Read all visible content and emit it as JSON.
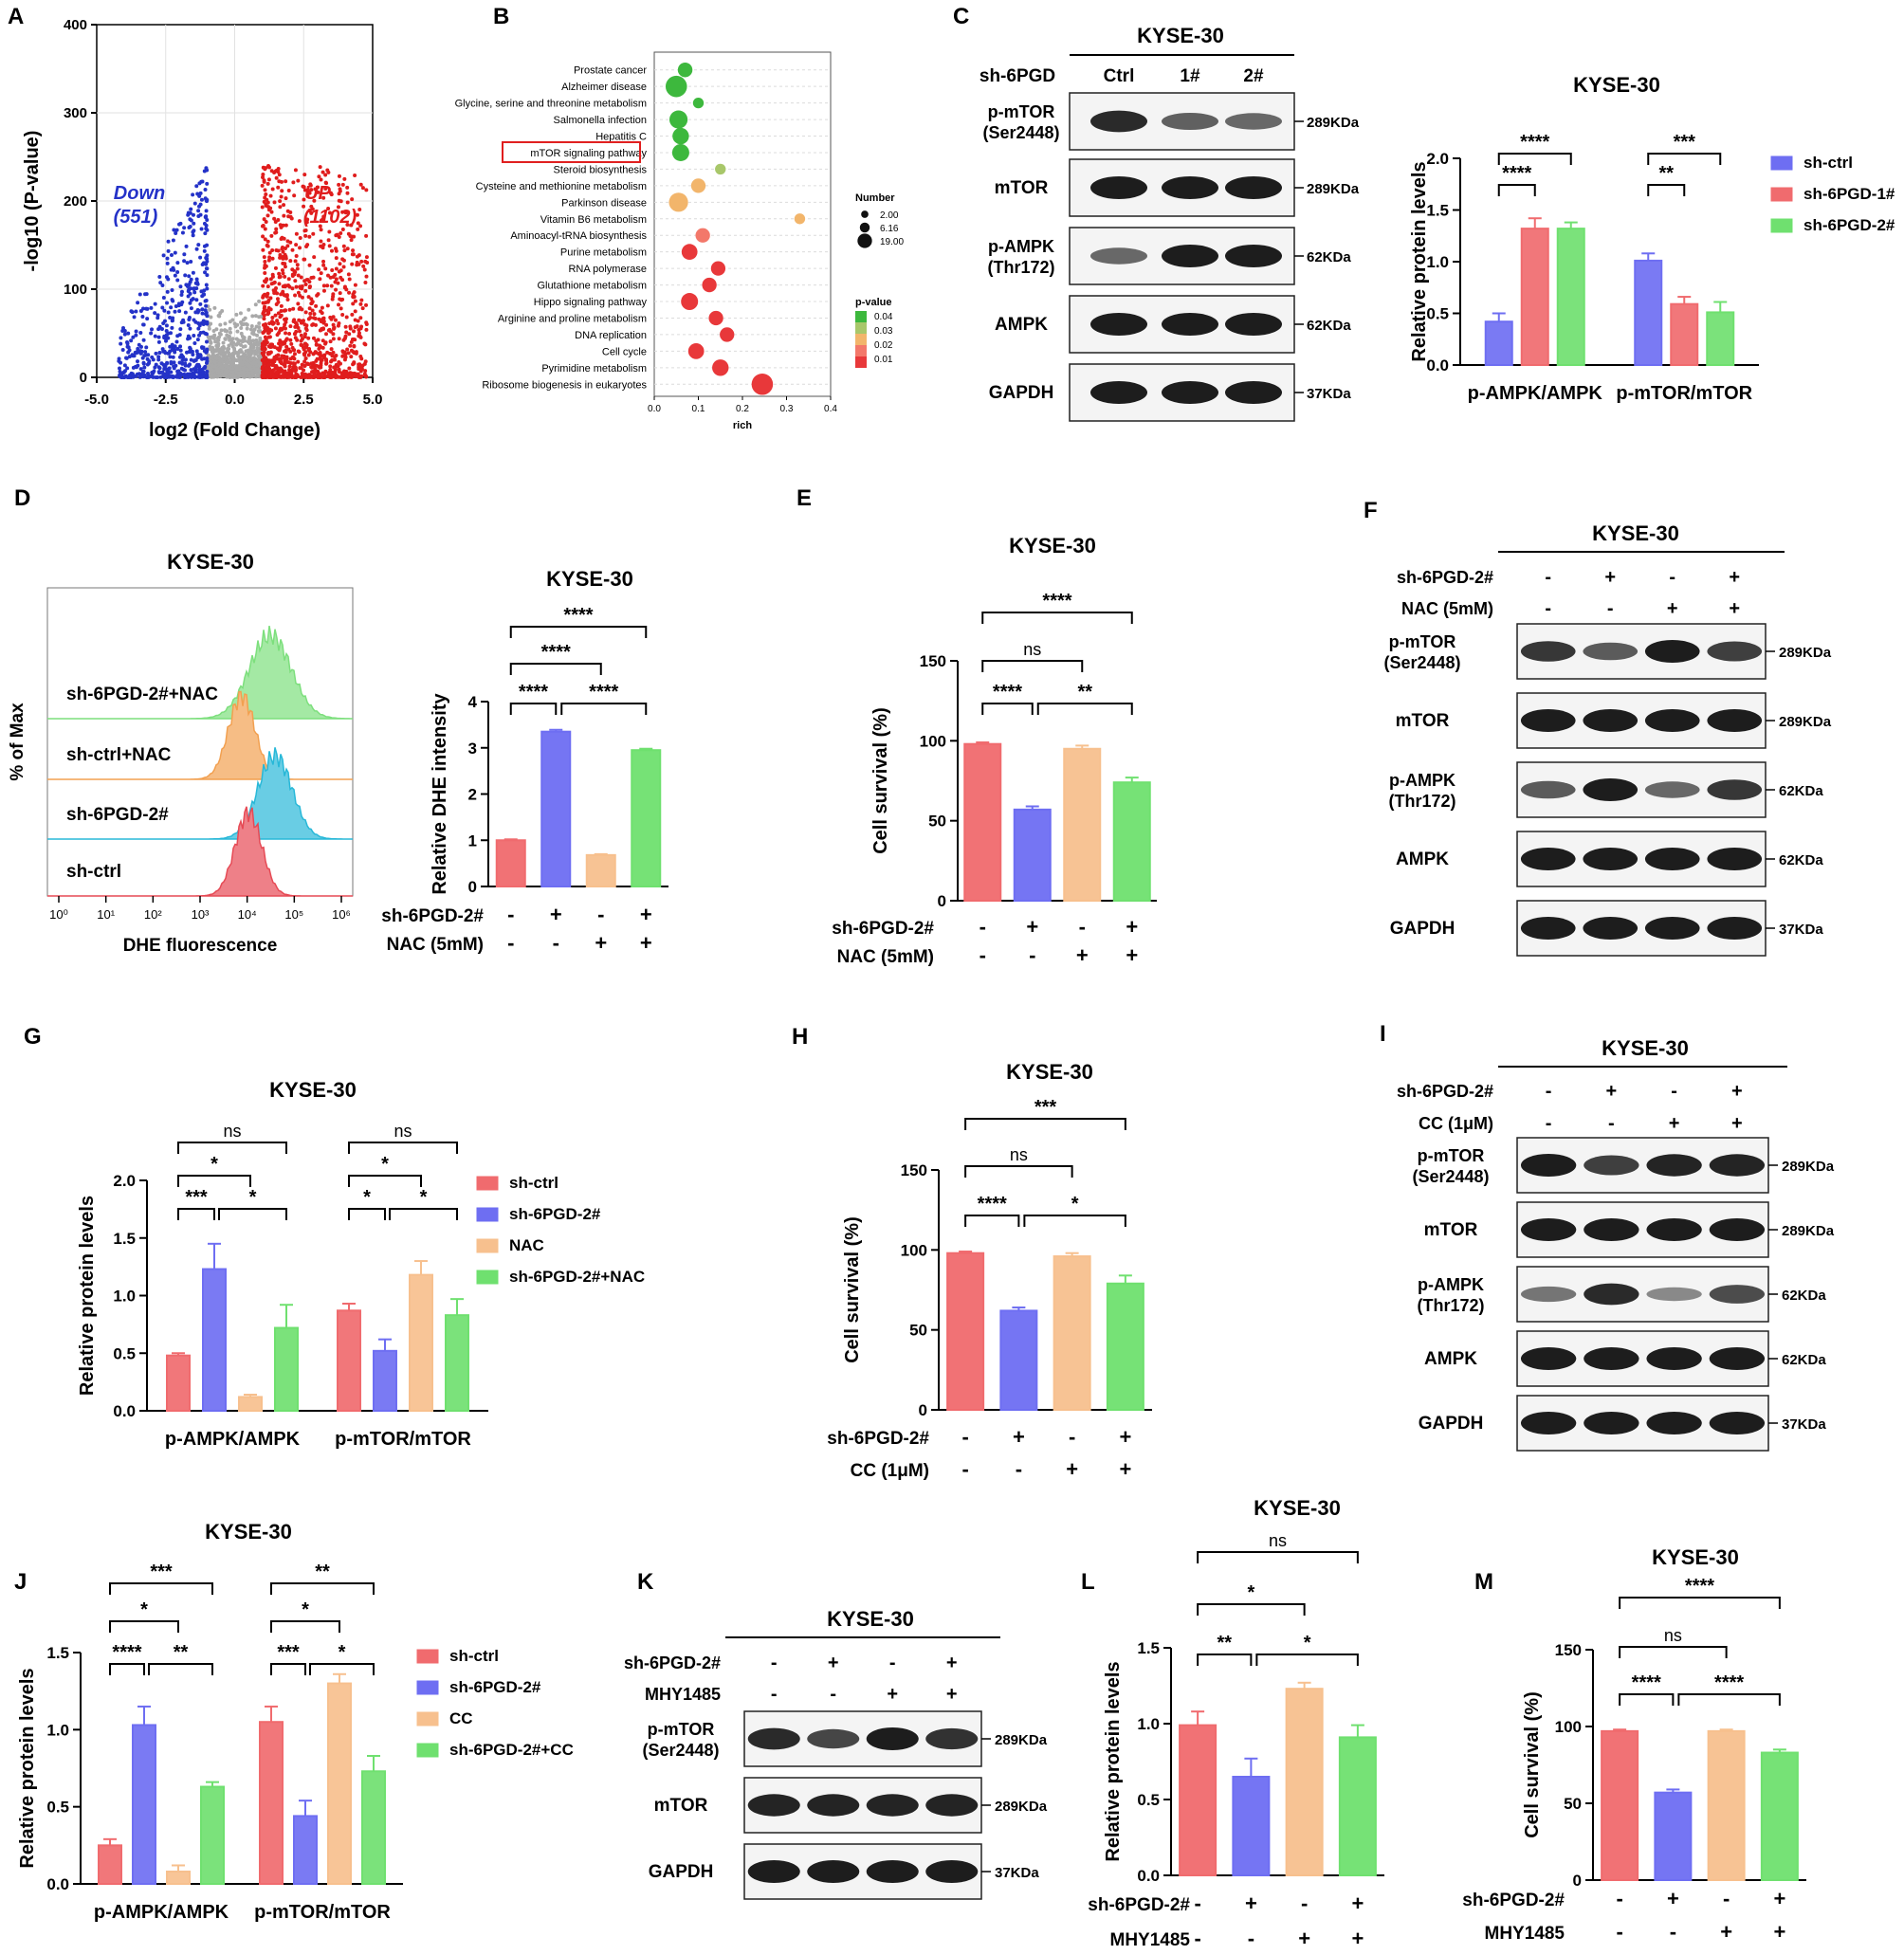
{
  "colors": {
    "ctrl": "#f06b6e",
    "sh": "#6e6ef2",
    "nac": "#f7c08e",
    "combo": "#6fe06f",
    "gray": "#a9a9a9",
    "up": "#e01d1d",
    "down": "#2432c8"
  },
  "panels": {
    "A": "A",
    "B": "B",
    "C": "C",
    "D": "D",
    "E": "E",
    "F": "F",
    "G": "G",
    "H": "H",
    "I": "I",
    "J": "J",
    "K": "K",
    "L": "L",
    "M": "M"
  },
  "cell_line": "KYSE-30",
  "chart_data": [
    {
      "id": "A",
      "type": "scatter",
      "xlabel": "log2 (Fold Change)",
      "ylabel": "-log10 (P-value)",
      "xlim": [
        -5,
        5
      ],
      "ylim": [
        0,
        400
      ],
      "xticks": [
        "-5.0",
        "-2.5",
        "0.0",
        "2.5",
        "5.0"
      ],
      "yticks": [
        "0",
        "100",
        "200",
        "300",
        "400"
      ],
      "annotations": [
        {
          "text": "Down",
          "color": "down"
        },
        {
          "text": "(551)",
          "color": "down"
        },
        {
          "text": "UP",
          "color": "up"
        },
        {
          "text": "(1102)",
          "color": "up"
        }
      ],
      "series": [
        {
          "name": "Down",
          "count": 551
        },
        {
          "name": "UP",
          "count": 1102
        }
      ],
      "grid": true
    },
    {
      "id": "B",
      "type": "scatter",
      "xlabel": "rich",
      "xlim": [
        0,
        0.4
      ],
      "xticks": [
        "0.0",
        "0.1",
        "0.2",
        "0.3",
        "0.4"
      ],
      "categories": [
        "Prostate cancer",
        "Alzheimer disease",
        "Glycine, serine and threonine metabolism",
        "Salmonella infection",
        "Hepatitis C",
        "mTOR signaling pathway",
        "Steroid biosynthesis",
        "Cysteine and methionine metabolism",
        "Parkinson disease",
        "Vitamin B6 metabolism",
        "Aminoacyl-tRNA biosynthesis",
        "Purine metabolism",
        "RNA polymerase",
        "Glutathione metabolism",
        "Hippo signaling pathway",
        "Arginine and proline metabolism",
        "DNA replication",
        "Cell cycle",
        "Pyrimidine metabolism",
        "Ribosome biogenesis in eukaryotes"
      ],
      "rich": [
        0.07,
        0.05,
        0.1,
        0.055,
        0.06,
        0.06,
        0.15,
        0.1,
        0.055,
        0.33,
        0.11,
        0.08,
        0.145,
        0.125,
        0.08,
        0.14,
        0.165,
        0.095,
        0.15,
        0.245
      ],
      "number": [
        6.16,
        19,
        2,
        12,
        9,
        10,
        2,
        6,
        14,
        2,
        6,
        8,
        6,
        6,
        10,
        6,
        6,
        8,
        9,
        19
      ],
      "pvalue": [
        0.04,
        0.04,
        0.04,
        0.04,
        0.04,
        0.04,
        0.03,
        0.02,
        0.02,
        0.02,
        0.015,
        0.01,
        0.01,
        0.01,
        0.01,
        0.01,
        0.01,
        0.01,
        0.01,
        0.01
      ],
      "highlight": "mTOR signaling pathway",
      "legend": {
        "size_title": "Number",
        "sizes": [
          "2.00",
          "6.16",
          "19.00"
        ],
        "color_title": "p-value",
        "colors": [
          "0.04",
          "0.03",
          "0.02",
          "0.01"
        ]
      },
      "grid": true
    },
    {
      "id": "C-quant",
      "type": "bar",
      "title": "KYSE-30",
      "ylabel": "Relative protein levels",
      "ylim": [
        0,
        2
      ],
      "yticks": [
        "0.0",
        "0.5",
        "1.0",
        "1.5",
        "2.0"
      ],
      "categories": [
        "p-AMPK/AMPK",
        "p-mTOR/mTOR"
      ],
      "series": [
        {
          "name": "sh-ctrl",
          "color": "sh",
          "values": [
            0.42,
            1.01
          ],
          "err": [
            0.08,
            0.07
          ]
        },
        {
          "name": "sh-6PGD-1#",
          "color": "ctrl",
          "values": [
            1.32,
            0.59
          ],
          "err": [
            0.1,
            0.07
          ]
        },
        {
          "name": "sh-6PGD-2#",
          "color": "combo",
          "values": [
            1.32,
            0.51
          ],
          "err": [
            0.06,
            0.1
          ]
        }
      ],
      "legend": "top-right"
    },
    {
      "id": "D-quant",
      "type": "bar",
      "title": "KYSE-30",
      "ylabel": "Relative DHE intensity",
      "ylim": [
        0,
        4
      ],
      "yticks": [
        "0",
        "1",
        "2",
        "3",
        "4"
      ],
      "values": [
        1.0,
        3.35,
        0.68,
        2.95
      ],
      "err": [
        0.02,
        0.04,
        0.02,
        0.03
      ],
      "colors": [
        "ctrl",
        "sh",
        "nac",
        "combo"
      ]
    },
    {
      "id": "E",
      "type": "bar",
      "title": "KYSE-30",
      "ylabel": "Cell survival (%)",
      "ylim": [
        0,
        150
      ],
      "yticks": [
        "0",
        "50",
        "100",
        "150"
      ],
      "values": [
        98,
        57,
        95,
        74
      ],
      "err": [
        1,
        2,
        2,
        3
      ],
      "colors": [
        "ctrl",
        "sh",
        "nac",
        "combo"
      ]
    },
    {
      "id": "G",
      "type": "bar",
      "title": "KYSE-30",
      "ylabel": "Relative protein levels",
      "ylim": [
        0,
        2
      ],
      "yticks": [
        "0.0",
        "0.5",
        "1.0",
        "1.5",
        "2.0"
      ],
      "categories": [
        "p-AMPK/AMPK",
        "p-mTOR/mTOR"
      ],
      "series": [
        {
          "name": "sh-ctrl",
          "color": "ctrl",
          "values": [
            0.48,
            0.87
          ],
          "err": [
            0.02,
            0.06
          ]
        },
        {
          "name": "sh-6PGD-2#",
          "color": "sh",
          "values": [
            1.23,
            0.52
          ],
          "err": [
            0.22,
            0.1
          ]
        },
        {
          "name": "NAC",
          "color": "nac",
          "values": [
            0.12,
            1.18
          ],
          "err": [
            0.02,
            0.12
          ]
        },
        {
          "name": "sh-6PGD-2#+NAC",
          "color": "combo",
          "values": [
            0.72,
            0.83
          ],
          "err": [
            0.2,
            0.14
          ]
        }
      ],
      "legend": "right"
    },
    {
      "id": "H",
      "type": "bar",
      "title": "KYSE-30",
      "ylabel": "Cell survival (%)",
      "ylim": [
        0,
        150
      ],
      "yticks": [
        "0",
        "50",
        "100",
        "150"
      ],
      "values": [
        98,
        62,
        96,
        79
      ],
      "err": [
        1,
        2,
        2,
        5
      ],
      "colors": [
        "ctrl",
        "sh",
        "nac",
        "combo"
      ]
    },
    {
      "id": "J",
      "type": "bar",
      "title": "KYSE-30",
      "ylabel": "Relative protein levels",
      "ylim": [
        0,
        1.5
      ],
      "yticks": [
        "0.0",
        "0.5",
        "1.0",
        "1.5"
      ],
      "categories": [
        "p-AMPK/AMPK",
        "p-mTOR/mTOR"
      ],
      "series": [
        {
          "name": "sh-ctrl",
          "color": "ctrl",
          "values": [
            0.25,
            1.05
          ],
          "err": [
            0.04,
            0.1
          ]
        },
        {
          "name": "sh-6PGD-2#",
          "color": "sh",
          "values": [
            1.03,
            0.44
          ],
          "err": [
            0.12,
            0.1
          ]
        },
        {
          "name": "CC",
          "color": "nac",
          "values": [
            0.08,
            1.3
          ],
          "err": [
            0.04,
            0.06
          ]
        },
        {
          "name": "sh-6PGD-2#+CC",
          "color": "combo",
          "values": [
            0.63,
            0.73
          ],
          "err": [
            0.03,
            0.1
          ]
        }
      ],
      "legend": "right"
    },
    {
      "id": "L",
      "type": "bar",
      "title": "KYSE-30",
      "ylabel": "Relative protein levels",
      "ylim": [
        0,
        1.5
      ],
      "yticks": [
        "0.0",
        "0.5",
        "1.0",
        "1.5"
      ],
      "values": [
        0.99,
        0.65,
        1.23,
        0.91
      ],
      "err": [
        0.09,
        0.12,
        0.04,
        0.08
      ],
      "colors": [
        "ctrl",
        "sh",
        "nac",
        "combo"
      ]
    },
    {
      "id": "M",
      "type": "bar",
      "title": "KYSE-30",
      "ylabel": "Cell survival (%)",
      "ylim": [
        0,
        150
      ],
      "yticks": [
        "0",
        "50",
        "100",
        "150"
      ],
      "values": [
        97,
        57,
        97,
        83
      ],
      "err": [
        1,
        2,
        1,
        2
      ],
      "colors": [
        "ctrl",
        "sh",
        "nac",
        "combo"
      ]
    }
  ],
  "blot_C": {
    "title": "KYSE-30",
    "cond_label": "sh-6PGD",
    "lanes": [
      "Ctrl",
      "1#",
      "2#"
    ],
    "rows": [
      {
        "label": "p-mTOR (Ser2448)",
        "kda": "289KDa"
      },
      {
        "label": "mTOR",
        "kda": "289KDa"
      },
      {
        "label": "p-AMPK (Thr172)",
        "kda": "62KDa"
      },
      {
        "label": "AMPK",
        "kda": "62KDa"
      },
      {
        "label": "GAPDH",
        "kda": "37KDa"
      }
    ]
  },
  "blot_F": {
    "title": "KYSE-30",
    "conds": [
      {
        "label": "sh-6PGD-2#",
        "signs": [
          "-",
          "+",
          "-",
          "+"
        ]
      },
      {
        "label": "NAC (5mM)",
        "signs": [
          "-",
          "-",
          "+",
          "+"
        ]
      }
    ],
    "rows": [
      {
        "label": "p-mTOR (Ser2448)",
        "kda": "289KDa"
      },
      {
        "label": "mTOR",
        "kda": "289KDa"
      },
      {
        "label": "p-AMPK (Thr172)",
        "kda": "62KDa"
      },
      {
        "label": "AMPK",
        "kda": "62KDa"
      },
      {
        "label": "GAPDH",
        "kda": "37KDa"
      }
    ]
  },
  "blot_I": {
    "title": "KYSE-30",
    "conds": [
      {
        "label": "sh-6PGD-2#",
        "signs": [
          "-",
          "+",
          "-",
          "+"
        ]
      },
      {
        "label": "CC (1μM)",
        "signs": [
          "-",
          "-",
          "+",
          "+"
        ]
      }
    ],
    "rows": [
      {
        "label": "p-mTOR (Ser2448)",
        "kda": "289KDa"
      },
      {
        "label": "mTOR",
        "kda": "289KDa"
      },
      {
        "label": "p-AMPK (Thr172)",
        "kda": "62KDa"
      },
      {
        "label": "AMPK",
        "kda": "62KDa"
      },
      {
        "label": "GAPDH",
        "kda": "37KDa"
      }
    ]
  },
  "blot_K": {
    "title": "KYSE-30",
    "conds": [
      {
        "label": "sh-6PGD-2#",
        "signs": [
          "-",
          "+",
          "-",
          "+"
        ]
      },
      {
        "label": "MHY1485",
        "signs": [
          "-",
          "-",
          "+",
          "+"
        ]
      }
    ],
    "rows": [
      {
        "label": "p-mTOR (Ser2448)",
        "kda": "289KDa"
      },
      {
        "label": "mTOR",
        "kda": "289KDa"
      },
      {
        "label": "GAPDH",
        "kda": "37KDa"
      }
    ]
  },
  "flow_D": {
    "title": "KYSE-30",
    "ylabel": "% of Max",
    "xlabel": "DHE fluorescence",
    "tracks": [
      "sh-6PGD-2#+NAC",
      "sh-ctrl+NAC",
      "sh-6PGD-2#",
      "sh-ctrl"
    ],
    "xticks": [
      "10⁰",
      "10¹",
      "10²",
      "10³",
      "10⁴",
      "10⁵",
      "10⁶"
    ]
  },
  "conds": {
    "D": [
      {
        "label": "sh-6PGD-2#",
        "signs": [
          "-",
          "+",
          "-",
          "+"
        ]
      },
      {
        "label": "NAC (5mM)",
        "signs": [
          "-",
          "-",
          "+",
          "+"
        ]
      }
    ],
    "E": [
      {
        "label": "sh-6PGD-2#",
        "signs": [
          "-",
          "+",
          "-",
          "+"
        ]
      },
      {
        "label": "NAC (5mM)",
        "signs": [
          "-",
          "-",
          "+",
          "+"
        ]
      }
    ],
    "H": [
      {
        "label": "sh-6PGD-2#",
        "signs": [
          "-",
          "+",
          "-",
          "+"
        ]
      },
      {
        "label": "CC (1μM)",
        "signs": [
          "-",
          "-",
          "+",
          "+"
        ]
      }
    ],
    "L": [
      {
        "label": "sh-6PGD-2#",
        "signs": [
          "-",
          "+",
          "-",
          "+"
        ]
      },
      {
        "label": "MHY1485",
        "signs": [
          "-",
          "-",
          "+",
          "+"
        ]
      }
    ],
    "M": [
      {
        "label": "sh-6PGD-2#",
        "signs": [
          "-",
          "+",
          "-",
          "+"
        ]
      },
      {
        "label": "MHY1485",
        "signs": [
          "-",
          "-",
          "+",
          "+"
        ]
      }
    ]
  },
  "sig": {
    "C": [
      {
        "label": "****"
      },
      {
        "label": "****"
      },
      {
        "label": "***"
      },
      {
        "label": "**"
      }
    ],
    "D": [
      {
        "label": "****"
      },
      {
        "label": "****"
      },
      {
        "label": "****"
      },
      {
        "label": "****"
      }
    ],
    "E": [
      {
        "label": "****"
      },
      {
        "label": "ns"
      },
      {
        "label": "****"
      },
      {
        "label": "**"
      }
    ],
    "G": [
      {
        "label": "ns"
      },
      {
        "label": "*"
      },
      {
        "label": "***"
      },
      {
        "label": "*"
      },
      {
        "label": "ns"
      },
      {
        "label": "*"
      },
      {
        "label": "*"
      },
      {
        "label": "*"
      }
    ],
    "H": [
      {
        "label": "***"
      },
      {
        "label": "ns"
      },
      {
        "label": "****"
      },
      {
        "label": "*"
      }
    ],
    "J": [
      {
        "label": "***"
      },
      {
        "label": "*"
      },
      {
        "label": "****"
      },
      {
        "label": "**"
      },
      {
        "label": "**"
      },
      {
        "label": "*"
      },
      {
        "label": "***"
      },
      {
        "label": "*"
      }
    ],
    "L": [
      {
        "label": "ns"
      },
      {
        "label": "*"
      },
      {
        "label": "**"
      },
      {
        "label": "*"
      }
    ],
    "M": [
      {
        "label": "****"
      },
      {
        "label": "ns"
      },
      {
        "label": "****"
      },
      {
        "label": "****"
      }
    ]
  }
}
